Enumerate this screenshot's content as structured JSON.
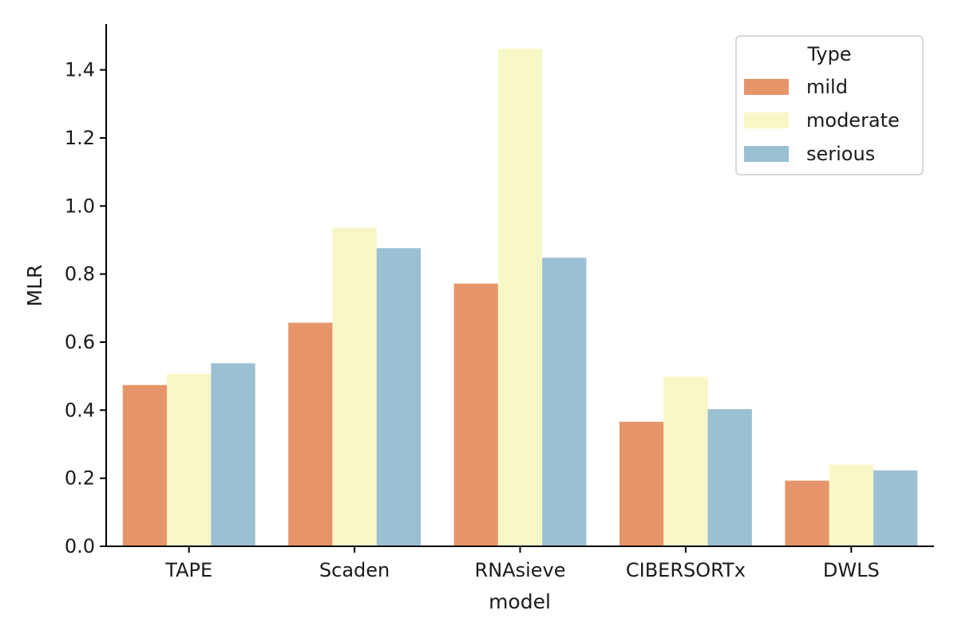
{
  "chart_data": {
    "type": "bar",
    "xlabel": "model",
    "ylabel": "MLR",
    "categories": [
      "TAPE",
      "Scaden",
      "RNAsieve",
      "CIBERSORTx",
      "DWLS"
    ],
    "series": [
      {
        "name": "mild",
        "color": "#e6956a",
        "values": [
          0.474,
          0.657,
          0.772,
          0.366,
          0.193
        ]
      },
      {
        "name": "moderate",
        "color": "#f8f7c7",
        "values": [
          0.507,
          0.936,
          1.462,
          0.498,
          0.24
        ]
      },
      {
        "name": "serious",
        "color": "#9bc0d4",
        "values": [
          0.538,
          0.876,
          0.848,
          0.403,
          0.223
        ]
      }
    ],
    "ylim": [
      0,
      1.535
    ],
    "yticks": [
      "0.0",
      "0.2",
      "0.4",
      "0.6",
      "0.8",
      "1.0",
      "1.2",
      "1.4"
    ],
    "ytick_values": [
      0,
      0.2,
      0.4,
      0.6,
      0.8,
      1.0,
      1.2,
      1.4
    ],
    "legend": {
      "title": "Type",
      "placement": "top-right"
    },
    "grid": false
  }
}
